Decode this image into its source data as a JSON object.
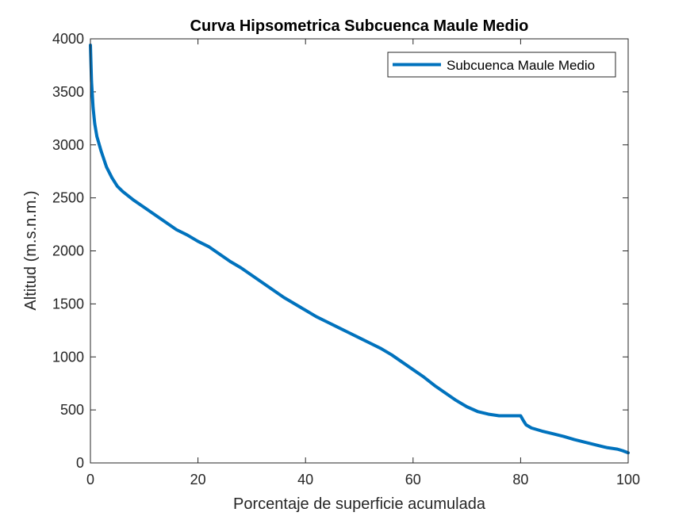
{
  "chart_data": {
    "type": "line",
    "title": "Curva Hipsometrica Subcuenca Maule Medio",
    "xlabel": "Porcentaje de superficie acumulada",
    "ylabel": "Altitud (m.s.n.m.)",
    "xlim": [
      0,
      100
    ],
    "ylim": [
      0,
      4000
    ],
    "xticks": [
      0,
      20,
      40,
      60,
      80,
      100
    ],
    "yticks": [
      0,
      500,
      1000,
      1500,
      2000,
      2500,
      3000,
      3500,
      4000
    ],
    "grid": false,
    "legend_position": "top-right",
    "series": [
      {
        "name": "Subcuenca Maule Medio",
        "color": "#0072BD",
        "x": [
          0,
          0.2,
          0.5,
          0.8,
          1.2,
          2,
          3,
          4,
          5,
          6,
          7,
          8,
          10,
          12,
          14,
          16,
          18,
          20,
          22,
          24,
          26,
          28,
          30,
          32,
          34,
          36,
          38,
          40,
          42,
          44,
          46,
          48,
          50,
          52,
          54,
          56,
          58,
          60,
          62,
          64,
          66,
          68,
          70,
          72,
          74,
          76,
          78,
          80,
          80.5,
          81,
          82,
          84,
          86,
          88,
          90,
          92,
          94,
          96,
          98,
          99,
          100
        ],
        "y": [
          3940,
          3600,
          3350,
          3200,
          3080,
          2940,
          2790,
          2690,
          2610,
          2560,
          2520,
          2480,
          2410,
          2340,
          2270,
          2200,
          2150,
          2090,
          2040,
          1970,
          1900,
          1840,
          1770,
          1700,
          1630,
          1560,
          1500,
          1440,
          1380,
          1330,
          1280,
          1230,
          1180,
          1130,
          1080,
          1020,
          950,
          880,
          810,
          730,
          660,
          590,
          530,
          485,
          460,
          445,
          445,
          445,
          400,
          360,
          330,
          300,
          275,
          250,
          220,
          195,
          170,
          145,
          130,
          115,
          95
        ]
      }
    ]
  }
}
